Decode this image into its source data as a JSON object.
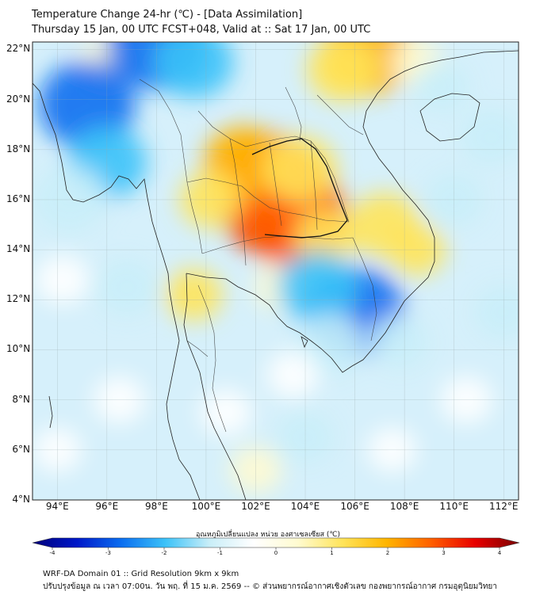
{
  "header": {
    "line1": "Temperature Change 24-hr (℃) - [Data Assimilation]",
    "line2": "Thursday 15 Jan, 00 UTC FCST+048, Valid at :: Sat 17 Jan, 00 UTC"
  },
  "map": {
    "variable": "24-hr temperature change",
    "lat_labels": [
      "22°N",
      "20°N",
      "18°N",
      "16°N",
      "14°N",
      "12°N",
      "10°N",
      "8°N",
      "6°N",
      "4°N"
    ],
    "lat_values": [
      22,
      20,
      18,
      16,
      14,
      12,
      10,
      8,
      6,
      4
    ],
    "lon_labels": [
      "94°E",
      "96°E",
      "98°E",
      "100°E",
      "102°E",
      "104°E",
      "106°E",
      "108°E",
      "110°E",
      "112°E"
    ],
    "lon_values": [
      94,
      96,
      98,
      100,
      102,
      104,
      106,
      108,
      110,
      112
    ],
    "lat_range": [
      4,
      22.3
    ],
    "lon_range": [
      93,
      112.6
    ],
    "field_blobs": [
      {
        "lon": 103.0,
        "lat": 15.8,
        "value": 3.0
      },
      {
        "lon": 102.5,
        "lat": 16.8,
        "value": 2.4
      },
      {
        "lon": 103.5,
        "lat": 15.3,
        "value": 2.6
      },
      {
        "lon": 101.5,
        "lat": 17.5,
        "value": 1.6
      },
      {
        "lon": 103.8,
        "lat": 17.2,
        "value": 1.4
      },
      {
        "lon": 100.2,
        "lat": 16.0,
        "value": 1.0
      },
      {
        "lon": 104.8,
        "lat": 14.5,
        "value": 1.0
      },
      {
        "lon": 106.5,
        "lat": 21.8,
        "value": 2.0
      },
      {
        "lon": 105.5,
        "lat": 21.2,
        "value": 1.3
      },
      {
        "lon": 107.2,
        "lat": 15.0,
        "value": 1.3
      },
      {
        "lon": 108.5,
        "lat": 14.0,
        "value": 0.8
      },
      {
        "lon": 99.5,
        "lat": 12.2,
        "value": 0.8
      },
      {
        "lon": 103.0,
        "lat": 12.5,
        "value": 0.6
      },
      {
        "lon": 102.0,
        "lat": 5.2,
        "value": 0.6
      },
      {
        "lon": 96.0,
        "lat": 21.5,
        "value": 0.7
      },
      {
        "lon": 108.5,
        "lat": 21.5,
        "value": 0.6
      },
      {
        "lon": 98.0,
        "lat": 22.2,
        "value": -2.3
      },
      {
        "lon": 95.2,
        "lat": 19.8,
        "value": -2.2
      },
      {
        "lon": 96.0,
        "lat": 17.5,
        "value": -1.6
      },
      {
        "lon": 94.5,
        "lat": 16.0,
        "value": -1.4
      },
      {
        "lon": 99.5,
        "lat": 21.5,
        "value": -1.6
      },
      {
        "lon": 106.0,
        "lat": 11.5,
        "value": -2.3
      },
      {
        "lon": 104.5,
        "lat": 12.5,
        "value": -1.6
      },
      {
        "lon": 105.0,
        "lat": 10.2,
        "value": -1.2
      },
      {
        "lon": 96.8,
        "lat": 12.5,
        "value": -1.0
      },
      {
        "lon": 94.2,
        "lat": 12.8,
        "value": -0.7
      },
      {
        "lon": 110.0,
        "lat": 16.0,
        "value": -0.9
      },
      {
        "lon": 111.5,
        "lat": 18.5,
        "value": -1.0
      },
      {
        "lon": 107.8,
        "lat": 10.3,
        "value": -0.9
      },
      {
        "lon": 112.0,
        "lat": 11.5,
        "value": -0.9
      },
      {
        "lon": 109.5,
        "lat": 20.5,
        "value": -0.8
      },
      {
        "lon": 100.8,
        "lat": 7.5,
        "value": -0.6
      },
      {
        "lon": 104.0,
        "lat": 6.5,
        "value": -0.8
      },
      {
        "lon": 96.5,
        "lat": 8.0,
        "value": -0.6
      },
      {
        "lon": 110.5,
        "lat": 8.0,
        "value": -0.6
      },
      {
        "lon": 107.5,
        "lat": 6.0,
        "value": -0.5
      },
      {
        "lon": 94.0,
        "lat": 6.0,
        "value": -0.5
      },
      {
        "lon": 103.5,
        "lat": 9.0,
        "value": -0.6
      }
    ]
  },
  "colorbar": {
    "title": "อุณหภูมิเปลี่ยนแปลง หน่วย องศาเซลเซียส (℃)",
    "ticks": [
      "-4",
      "-3",
      "-2",
      "-1",
      "0",
      "1",
      "2",
      "3",
      "4"
    ],
    "tick_values": [
      -4,
      -3,
      -2,
      -1,
      0,
      1,
      2,
      3,
      4
    ],
    "min": -4,
    "max": 4,
    "colors": [
      "#00007a",
      "#0018c8",
      "#0a6ef0",
      "#3cc2f8",
      "#c9eef8",
      "#ffffff",
      "#fffbd0",
      "#ffe45a",
      "#ffb500",
      "#ff6000",
      "#e80000",
      "#7a0000"
    ]
  },
  "footer": {
    "line1": "WRF-DA Domain 01 :: Grid Resolution 9km x 9km",
    "line2": "ปรับปรุงข้อมูล ณ เวลา 07:00น. วัน พฤ. ที่ 15 ม.ค. 2569 -- © ส่วนพยากรณ์อากาศเชิงตัวเลข กองพยากรณ์อากาศ กรมอุตุนิยมวิทยา"
  }
}
